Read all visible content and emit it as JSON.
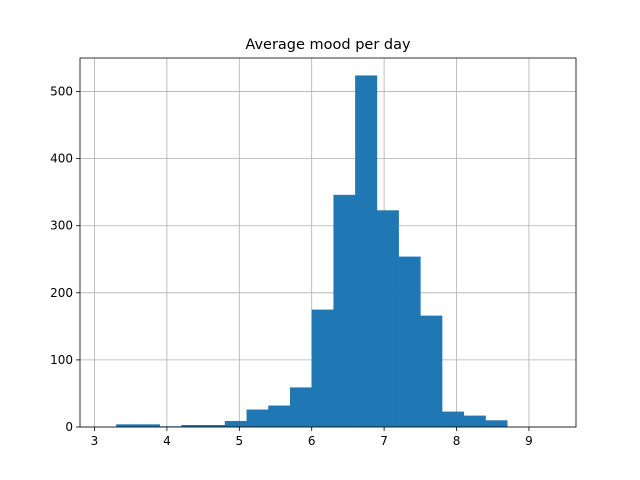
{
  "chart_data": {
    "type": "bar",
    "subtype": "histogram",
    "title": "Average mood per day",
    "xlabel": "",
    "ylabel": "",
    "xlim": [
      2.8,
      9.65
    ],
    "ylim": [
      0,
      550
    ],
    "xticks": [
      3,
      4,
      5,
      6,
      7,
      8,
      9
    ],
    "yticks": [
      0,
      100,
      200,
      300,
      400,
      500
    ],
    "grid": true,
    "bar_color": "#1f77b4",
    "bin_edges": [
      3.0,
      3.3,
      3.6,
      3.9,
      4.2,
      4.5,
      4.8,
      5.1,
      5.4,
      5.7,
      6.0,
      6.3,
      6.6,
      6.9,
      7.2,
      7.5,
      7.8,
      8.1,
      8.4,
      8.7,
      9.0,
      9.3
    ],
    "values": [
      0,
      4,
      4,
      1,
      3,
      3,
      9,
      26,
      32,
      59,
      175,
      346,
      524,
      323,
      254,
      166,
      23,
      17,
      10,
      0,
      0
    ]
  }
}
